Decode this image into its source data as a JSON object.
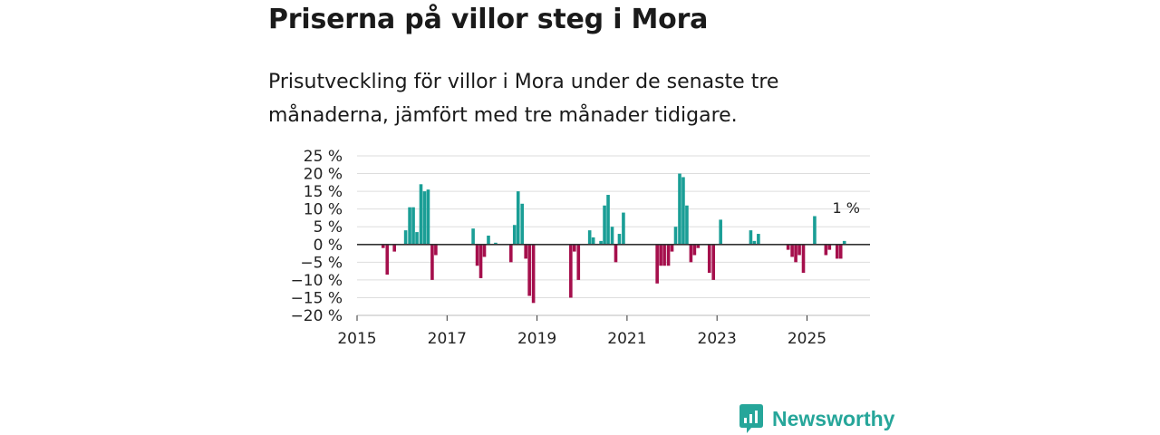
{
  "title": "Priserna på villor steg i Mora",
  "subtitle": "Prisutveckling för villor i Mora under de senaste tre månaderna, jämfört med tre månader tidigare.",
  "brand": {
    "name": "Newsworthy",
    "icon": "newsworthy-logo-icon"
  },
  "colors": {
    "positive": "#1a9e96",
    "negative": "#a50f4c",
    "grid": "#dddddd",
    "zero_line": "#333333",
    "text": "#222222"
  },
  "chart_data": {
    "type": "bar",
    "ylabel": "",
    "xlabel": "",
    "ylim": [
      -20,
      25
    ],
    "xlim": [
      2015.0,
      2026.4
    ],
    "y_ticks": [
      25,
      20,
      15,
      10,
      5,
      0,
      -5,
      -10,
      -15,
      -20
    ],
    "y_tick_labels": [
      "25 %",
      "20 %",
      "15 %",
      "10 %",
      "5 %",
      "0 %",
      "−5 %",
      "−10 %",
      "−15 %",
      "−20 %"
    ],
    "x_ticks": [
      2015,
      2017,
      2019,
      2021,
      2023,
      2025
    ],
    "x_tick_labels": [
      "2015",
      "2017",
      "2019",
      "2021",
      "2023",
      "2025"
    ],
    "annotation": {
      "label": "1 %",
      "x": 2025.83,
      "y": 1
    },
    "series": [
      {
        "name": "Prisutveckling",
        "x": [
          2015.58,
          2015.67,
          2015.83,
          2016.08,
          2016.17,
          2016.25,
          2016.33,
          2016.42,
          2016.5,
          2016.58,
          2016.67,
          2016.75,
          2017.58,
          2017.67,
          2017.75,
          2017.83,
          2017.92,
          2018.08,
          2018.42,
          2018.5,
          2018.58,
          2018.67,
          2018.75,
          2018.83,
          2018.92,
          2019.75,
          2019.83,
          2019.92,
          2020.17,
          2020.25,
          2020.42,
          2020.5,
          2020.58,
          2020.67,
          2020.75,
          2020.83,
          2020.92,
          2021.67,
          2021.75,
          2021.83,
          2021.92,
          2022.0,
          2022.08,
          2022.17,
          2022.25,
          2022.33,
          2022.42,
          2022.5,
          2022.58,
          2022.83,
          2022.92,
          2023.08,
          2023.75,
          2023.83,
          2023.92,
          2024.58,
          2024.67,
          2024.75,
          2024.83,
          2024.92,
          2025.17,
          2025.42,
          2025.5,
          2025.67,
          2025.75,
          2025.83
        ],
        "values": [
          -1,
          -8.5,
          -2,
          4,
          10.5,
          10.5,
          3.5,
          17,
          15,
          15.5,
          -10,
          -3,
          4.5,
          -6,
          -9.5,
          -3.5,
          2.5,
          0.5,
          -5,
          5.5,
          15,
          11.5,
          -4,
          -14.5,
          -16.5,
          -15,
          -2,
          -10,
          4,
          2,
          1,
          11,
          14,
          5,
          -5,
          3,
          9,
          -11,
          -6,
          -6,
          -6,
          -2,
          5,
          20,
          19,
          11,
          -5,
          -3,
          -1,
          -8,
          -10,
          7,
          4,
          1,
          3,
          -1.5,
          -3.5,
          -5,
          -3,
          -8,
          8,
          -3,
          -1.5,
          -4,
          -4,
          1
        ]
      }
    ]
  }
}
